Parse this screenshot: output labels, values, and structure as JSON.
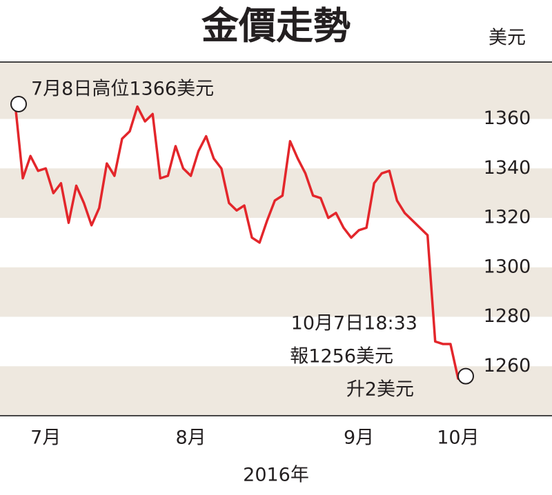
{
  "chart_data": {
    "type": "line",
    "title": "金價走勢",
    "y_label": "美元",
    "x_label": "2016年",
    "annotations": [
      "7月8日高位1366美元",
      "10月7日18:33",
      "報1256美元",
      "升2美元"
    ],
    "series": [
      {
        "color": "#e3262b",
        "values": [
          1366,
          1336,
          1345,
          1339,
          1340,
          1330,
          1334,
          1318,
          1333,
          1326,
          1317,
          1324,
          1342,
          1337,
          1352,
          1355,
          1365,
          1359,
          1362,
          1336,
          1337,
          1349,
          1340,
          1337,
          1347,
          1353,
          1344,
          1340,
          1326,
          1323,
          1325,
          1312,
          1310,
          1319,
          1327,
          1329,
          1351,
          1344,
          1338,
          1329,
          1328,
          1320,
          1322,
          1316,
          1312,
          1315,
          1316,
          1334,
          1338,
          1339,
          1327,
          1322,
          1319,
          1316,
          1313,
          1270,
          1269,
          1269,
          1255,
          1256
        ]
      }
    ],
    "xlim": [
      0,
      59
    ],
    "xticks": [
      {
        "value": 4,
        "label": "7月"
      },
      {
        "value": 23,
        "label": "8月"
      },
      {
        "value": 45,
        "label": "9月"
      },
      {
        "value": 58,
        "label": "10月"
      }
    ],
    "ylim": [
      1240,
      1383
    ],
    "yticks": [
      1260,
      1280,
      1300,
      1320,
      1340,
      1360
    ],
    "band_color": "#eee8df"
  }
}
